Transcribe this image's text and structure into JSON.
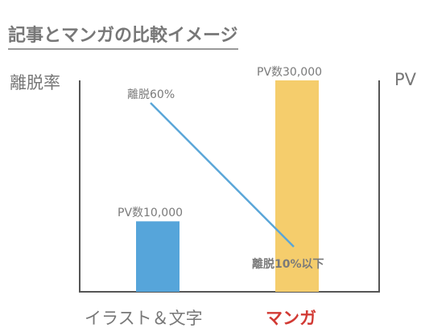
{
  "title": "記事とマンガの比較イメージ",
  "chart_data": {
    "type": "bar",
    "title": "記事とマンガの比較イメージ",
    "categories": [
      "イラスト＆文字",
      "マンガ"
    ],
    "y_left_label": "離脱率",
    "y_right_label": "PV",
    "bars": {
      "values": [
        10000,
        30000
      ],
      "labels": [
        "PV数10,000",
        "PV数30,000"
      ],
      "colors": [
        "#56a5da",
        "#f5cd6c"
      ],
      "ylim": [
        0,
        30000
      ]
    },
    "line": {
      "name": "離脱率",
      "values": [
        60,
        10
      ],
      "unit": "%",
      "color": "#5aa6d8",
      "ylim": [
        0,
        100
      ]
    },
    "annotations": {
      "start_label": "離脱60%",
      "end_prefix": "離脱",
      "end_value": "10%",
      "end_suffix": "以下"
    },
    "accent_color": "#d23a34",
    "grid": false,
    "legend": "none"
  }
}
